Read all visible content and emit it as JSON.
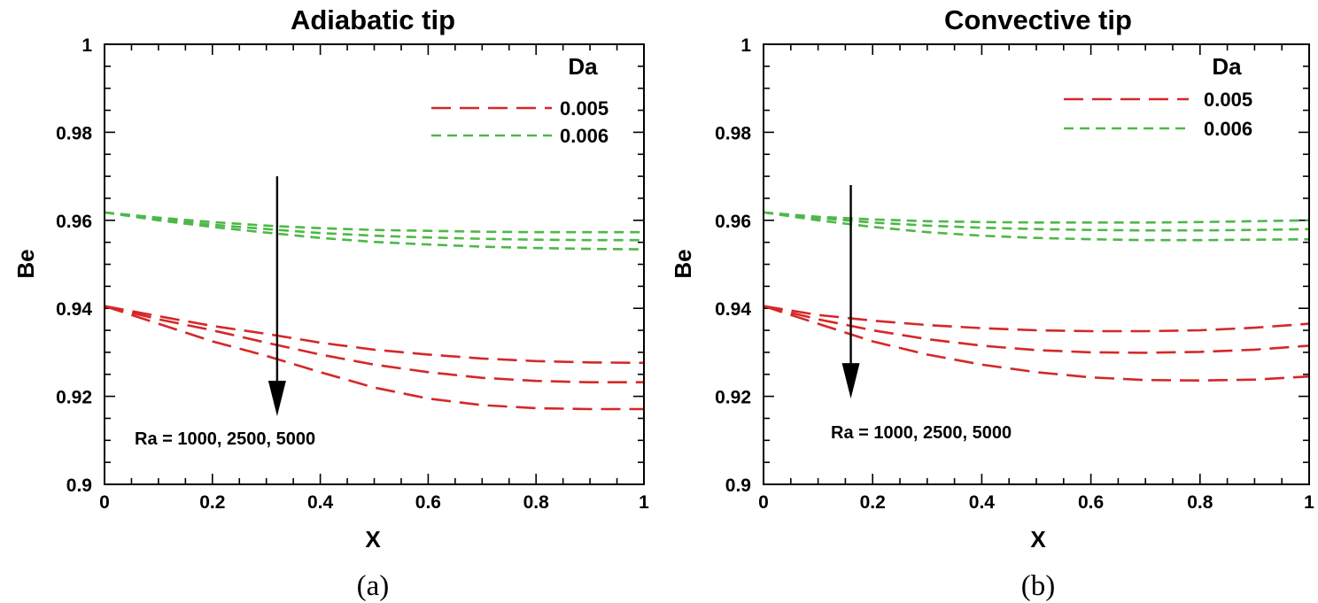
{
  "chart_data": [
    {
      "type": "line",
      "title": "Adiabatic tip",
      "caption": "(a)",
      "xlabel": "X",
      "ylabel": "Be",
      "xlim": [
        0,
        1
      ],
      "ylim": [
        0.9,
        1
      ],
      "xticks": [
        "0",
        "0.2",
        "0.4",
        "0.6",
        "0.8",
        "1"
      ],
      "yticks": [
        "0.9",
        "0.92",
        "0.94",
        "0.96",
        "0.98",
        "1"
      ],
      "legend": {
        "title": "Da",
        "entries": [
          "0.005",
          "0.006"
        ],
        "position": "top-right"
      },
      "annotation": "Ra = 1000, 2500, 5000",
      "arrow": {
        "direction": "down",
        "x": 0.32,
        "from_y": 0.97,
        "to_y": 0.9155
      },
      "series": [
        {
          "name": "0.005",
          "ra": 1000,
          "color": "#d62728",
          "dash": "long",
          "x": [
            0,
            0.1,
            0.2,
            0.3,
            0.4,
            0.5,
            0.6,
            0.7,
            0.8,
            0.9,
            1.0
          ],
          "y": [
            0.9405,
            0.9382,
            0.936,
            0.9342,
            0.9322,
            0.9306,
            0.9295,
            0.9286,
            0.928,
            0.9277,
            0.9276
          ]
        },
        {
          "name": "0.005",
          "ra": 2500,
          "color": "#d62728",
          "dash": "long",
          "x": [
            0,
            0.1,
            0.2,
            0.3,
            0.4,
            0.5,
            0.6,
            0.7,
            0.8,
            0.9,
            1.0
          ],
          "y": [
            0.9405,
            0.9375,
            0.935,
            0.9322,
            0.9295,
            0.9272,
            0.9255,
            0.9242,
            0.9235,
            0.9232,
            0.9232
          ]
        },
        {
          "name": "0.005",
          "ra": 5000,
          "color": "#d62728",
          "dash": "long",
          "x": [
            0,
            0.1,
            0.2,
            0.3,
            0.4,
            0.5,
            0.6,
            0.7,
            0.8,
            0.9,
            1.0
          ],
          "y": [
            0.9405,
            0.9365,
            0.9325,
            0.9292,
            0.9255,
            0.922,
            0.9195,
            0.918,
            0.9173,
            0.9171,
            0.9171
          ]
        },
        {
          "name": "0.006",
          "ra": 1000,
          "color": "#4db848",
          "dash": "short",
          "x": [
            0,
            0.1,
            0.2,
            0.3,
            0.4,
            0.5,
            0.6,
            0.7,
            0.8,
            0.9,
            1.0
          ],
          "y": [
            0.9618,
            0.9606,
            0.9596,
            0.9588,
            0.9582,
            0.9578,
            0.9576,
            0.9574,
            0.9573,
            0.9573,
            0.9573
          ]
        },
        {
          "name": "0.006",
          "ra": 2500,
          "color": "#4db848",
          "dash": "short",
          "x": [
            0,
            0.1,
            0.2,
            0.3,
            0.4,
            0.5,
            0.6,
            0.7,
            0.8,
            0.9,
            1.0
          ],
          "y": [
            0.9618,
            0.9603,
            0.959,
            0.958,
            0.9571,
            0.9565,
            0.9561,
            0.9558,
            0.9556,
            0.9555,
            0.9555
          ]
        },
        {
          "name": "0.006",
          "ra": 5000,
          "color": "#4db848",
          "dash": "short",
          "x": [
            0,
            0.1,
            0.2,
            0.3,
            0.4,
            0.5,
            0.6,
            0.7,
            0.8,
            0.9,
            1.0
          ],
          "y": [
            0.9618,
            0.96,
            0.9585,
            0.9572,
            0.956,
            0.9551,
            0.9545,
            0.954,
            0.9537,
            0.9535,
            0.9534
          ]
        }
      ]
    },
    {
      "type": "line",
      "title": "Convective tip",
      "caption": "(b)",
      "xlabel": "X",
      "ylabel": "Be",
      "xlim": [
        0,
        1
      ],
      "ylim": [
        0.9,
        1
      ],
      "xticks": [
        "0",
        "0.2",
        "0.4",
        "0.6",
        "0.8",
        "1"
      ],
      "yticks": [
        "0.9",
        "0.92",
        "0.94",
        "0.96",
        "0.98",
        "1"
      ],
      "legend": {
        "title": "Da",
        "entries": [
          "0.005",
          "0.006"
        ],
        "position": "top-right"
      },
      "annotation": "Ra = 1000, 2500, 5000",
      "arrow": {
        "direction": "down",
        "x": 0.16,
        "from_y": 0.968,
        "to_y": 0.9195
      },
      "series": [
        {
          "name": "0.005",
          "ra": 1000,
          "color": "#d62728",
          "dash": "long",
          "x": [
            0,
            0.1,
            0.2,
            0.3,
            0.4,
            0.5,
            0.6,
            0.7,
            0.8,
            0.9,
            1.0
          ],
          "y": [
            0.9405,
            0.9385,
            0.9372,
            0.9362,
            0.9355,
            0.935,
            0.9348,
            0.9348,
            0.935,
            0.9356,
            0.9365
          ]
        },
        {
          "name": "0.005",
          "ra": 2500,
          "color": "#d62728",
          "dash": "long",
          "x": [
            0,
            0.1,
            0.2,
            0.3,
            0.4,
            0.5,
            0.6,
            0.7,
            0.8,
            0.9,
            1.0
          ],
          "y": [
            0.9405,
            0.9375,
            0.935,
            0.933,
            0.9315,
            0.9305,
            0.93,
            0.9299,
            0.9301,
            0.9306,
            0.9315
          ]
        },
        {
          "name": "0.005",
          "ra": 5000,
          "color": "#d62728",
          "dash": "long",
          "x": [
            0,
            0.1,
            0.2,
            0.3,
            0.4,
            0.5,
            0.6,
            0.7,
            0.8,
            0.9,
            1.0
          ],
          "y": [
            0.9405,
            0.9365,
            0.9325,
            0.9295,
            0.9272,
            0.9255,
            0.9243,
            0.9237,
            0.9236,
            0.9238,
            0.9245
          ]
        },
        {
          "name": "0.006",
          "ra": 1000,
          "color": "#4db848",
          "dash": "short",
          "x": [
            0,
            0.1,
            0.2,
            0.3,
            0.4,
            0.5,
            0.6,
            0.7,
            0.8,
            0.9,
            1.0
          ],
          "y": [
            0.9618,
            0.9608,
            0.9602,
            0.9598,
            0.9596,
            0.9595,
            0.9595,
            0.9595,
            0.9596,
            0.9598,
            0.96
          ]
        },
        {
          "name": "0.006",
          "ra": 2500,
          "color": "#4db848",
          "dash": "short",
          "x": [
            0,
            0.1,
            0.2,
            0.3,
            0.4,
            0.5,
            0.6,
            0.7,
            0.8,
            0.9,
            1.0
          ],
          "y": [
            0.9618,
            0.9605,
            0.9595,
            0.9588,
            0.9583,
            0.958,
            0.9578,
            0.9577,
            0.9577,
            0.9578,
            0.958
          ]
        },
        {
          "name": "0.006",
          "ra": 5000,
          "color": "#4db848",
          "dash": "short",
          "x": [
            0,
            0.1,
            0.2,
            0.3,
            0.4,
            0.5,
            0.6,
            0.7,
            0.8,
            0.9,
            1.0
          ],
          "y": [
            0.9618,
            0.96,
            0.9585,
            0.9573,
            0.9565,
            0.956,
            0.9557,
            0.9555,
            0.9555,
            0.9556,
            0.9557
          ]
        }
      ]
    }
  ]
}
